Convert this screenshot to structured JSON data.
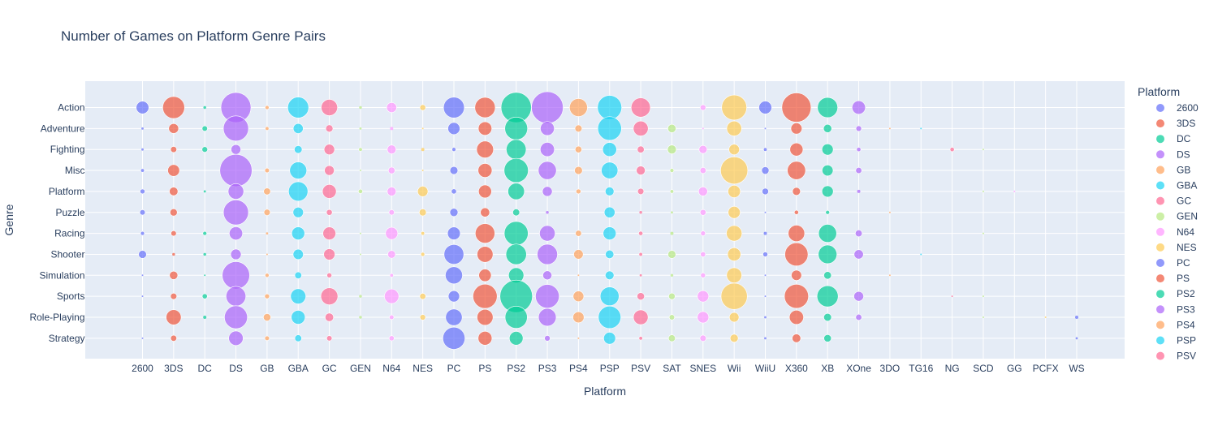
{
  "chart_data": {
    "type": "scatter",
    "title": "Number of Games on Platform Genre Pairs",
    "xlabel": "Platform",
    "ylabel": "Genre",
    "legend_title": "Platform",
    "legend_placement": "right",
    "grid": true,
    "platforms": [
      "2600",
      "3DS",
      "DC",
      "DS",
      "GB",
      "GBA",
      "GC",
      "GEN",
      "N64",
      "NES",
      "PC",
      "PS",
      "PS2",
      "PS3",
      "PS4",
      "PSP",
      "PSV",
      "SAT",
      "SNES",
      "Wii",
      "WiiU",
      "X360",
      "XB",
      "XOne",
      "3DO",
      "TG16",
      "NG",
      "SCD",
      "GG",
      "PCFX",
      "WS"
    ],
    "genres": [
      "Action",
      "Adventure",
      "Fighting",
      "Misc",
      "Platform",
      "Puzzle",
      "Racing",
      "Shooter",
      "Simulation",
      "Sports",
      "Role-Playing",
      "Strategy"
    ],
    "legend_entries": [
      "2600",
      "3DS",
      "DC",
      "DS",
      "GB",
      "GBA",
      "GC",
      "GEN",
      "N64",
      "NES",
      "PC",
      "PS",
      "PS2",
      "PS3",
      "PS4",
      "PSP",
      "PSV"
    ],
    "colors": {
      "2600": "#636efa",
      "3DS": "#EF553B",
      "DC": "#00cc96",
      "DS": "#ab63fa",
      "GB": "#FFA15A",
      "GBA": "#19d3f3",
      "GC": "#FF6692",
      "GEN": "#B6E880",
      "N64": "#FF97FF",
      "NES": "#FECB52",
      "PC": "#636efa",
      "PS": "#EF553B",
      "PS2": "#00cc96",
      "PS3": "#ab63fa",
      "PS4": "#FFA15A",
      "PSP": "#19d3f3",
      "PSV": "#FF6692",
      "SAT": "#B6E880",
      "SNES": "#FF97FF",
      "Wii": "#FECB52",
      "WiiU": "#636efa",
      "X360": "#EF553B",
      "XB": "#00cc96",
      "XOne": "#ab63fa",
      "3DO": "#FFA15A",
      "TG16": "#19d3f3",
      "NG": "#FF6692",
      "SCD": "#B6E880",
      "GG": "#FF97FF",
      "PCFX": "#FECB52",
      "WS": "#636efa"
    },
    "counts": {
      "2600": [
        61,
        2,
        2,
        5,
        9,
        11,
        6,
        24,
        1,
        1,
        0,
        1
      ],
      "3DS": [
        182,
        37,
        14,
        53,
        28,
        20,
        11,
        3,
        26,
        15,
        86,
        14
      ],
      "DC": [
        3,
        11,
        12,
        0,
        2,
        0,
        6,
        3,
        1,
        10,
        4,
        0
      ],
      "DS": [
        343,
        240,
        36,
        393,
        92,
        238,
        67,
        42,
        285,
        148,
        200,
        79
      ],
      "GB": [
        6,
        5,
        0,
        8,
        18,
        15,
        2,
        1,
        6,
        9,
        21,
        8
      ],
      "GBA": [
        167,
        38,
        23,
        110,
        142,
        41,
        64,
        40,
        18,
        88,
        73,
        18
      ],
      "GC": [
        101,
        20,
        42,
        36,
        73,
        13,
        63,
        48,
        9,
        110,
        27,
        11
      ],
      "GEN": [
        3,
        2,
        5,
        1,
        7,
        0,
        1,
        1,
        0,
        3,
        3,
        0
      ],
      "N64": [
        38,
        4,
        30,
        17,
        30,
        11,
        57,
        23,
        5,
        79,
        8,
        10
      ],
      "NES": [
        13,
        1,
        4,
        1,
        41,
        19,
        5,
        6,
        0,
        14,
        12,
        0
      ],
      "PC": [
        165,
        55,
        6,
        24,
        10,
        25,
        62,
        148,
        111,
        48,
        104,
        186
      ],
      "PS": [
        158,
        69,
        108,
        74,
        64,
        32,
        145,
        96,
        59,
        222,
        97,
        73
      ],
      "PS2": [
        348,
        196,
        150,
        222,
        103,
        18,
        216,
        160,
        88,
        400,
        187,
        71
      ],
      "PS3": [
        380,
        74,
        76,
        124,
        37,
        3,
        92,
        156,
        31,
        213,
        119,
        12
      ],
      "PS4": [
        122,
        19,
        17,
        24,
        9,
        0,
        14,
        34,
        1,
        43,
        47,
        1
      ],
      "PSP": [
        222,
        213,
        74,
        104,
        29,
        44,
        64,
        27,
        29,
        134,
        192,
        54
      ],
      "PSV": [
        141,
        84,
        18,
        30,
        15,
        3,
        7,
        5,
        2,
        21,
        82,
        5
      ],
      "SAT": [
        0,
        26,
        30,
        6,
        5,
        2,
        4,
        24,
        3,
        16,
        11,
        18
      ],
      "SNES": [
        12,
        1,
        25,
        14,
        31,
        13,
        9,
        10,
        9,
        49,
        50,
        15
      ],
      "Wii": [
        238,
        84,
        42,
        280,
        58,
        55,
        92,
        66,
        87,
        261,
        35,
        25
      ],
      "WiiU": [
        63,
        1,
        5,
        21,
        16,
        1,
        4,
        9,
        1,
        1,
        2,
        2
      ],
      "X360": [
        324,
        47,
        65,
        126,
        24,
        7,
        102,
        203,
        40,
        220,
        76,
        28
      ],
      "XB": [
        155,
        26,
        48,
        46,
        49,
        6,
        123,
        131,
        22,
        170,
        23,
        21
      ],
      "XOne": [
        68,
        12,
        7,
        14,
        4,
        0,
        18,
        33,
        0,
        36,
        14,
        0
      ],
      "3DO": [
        0,
        1,
        0,
        0,
        0,
        1,
        0,
        0,
        1,
        0,
        0,
        0
      ],
      "TG16": [
        0,
        1,
        0,
        0,
        0,
        0,
        0,
        1,
        0,
        0,
        0,
        0
      ],
      "NG": [
        0,
        0,
        7,
        0,
        0,
        0,
        0,
        0,
        0,
        1,
        0,
        0
      ],
      "SCD": [
        0,
        0,
        1,
        0,
        1,
        0,
        1,
        0,
        0,
        1,
        1,
        0
      ],
      "GG": [
        0,
        0,
        0,
        0,
        1,
        0,
        0,
        0,
        0,
        0,
        0,
        0
      ],
      "PCFX": [
        0,
        0,
        0,
        0,
        0,
        0,
        0,
        0,
        0,
        0,
        1,
        0
      ],
      "WS": [
        0,
        0,
        0,
        0,
        0,
        0,
        0,
        0,
        0,
        0,
        4,
        2
      ]
    }
  }
}
